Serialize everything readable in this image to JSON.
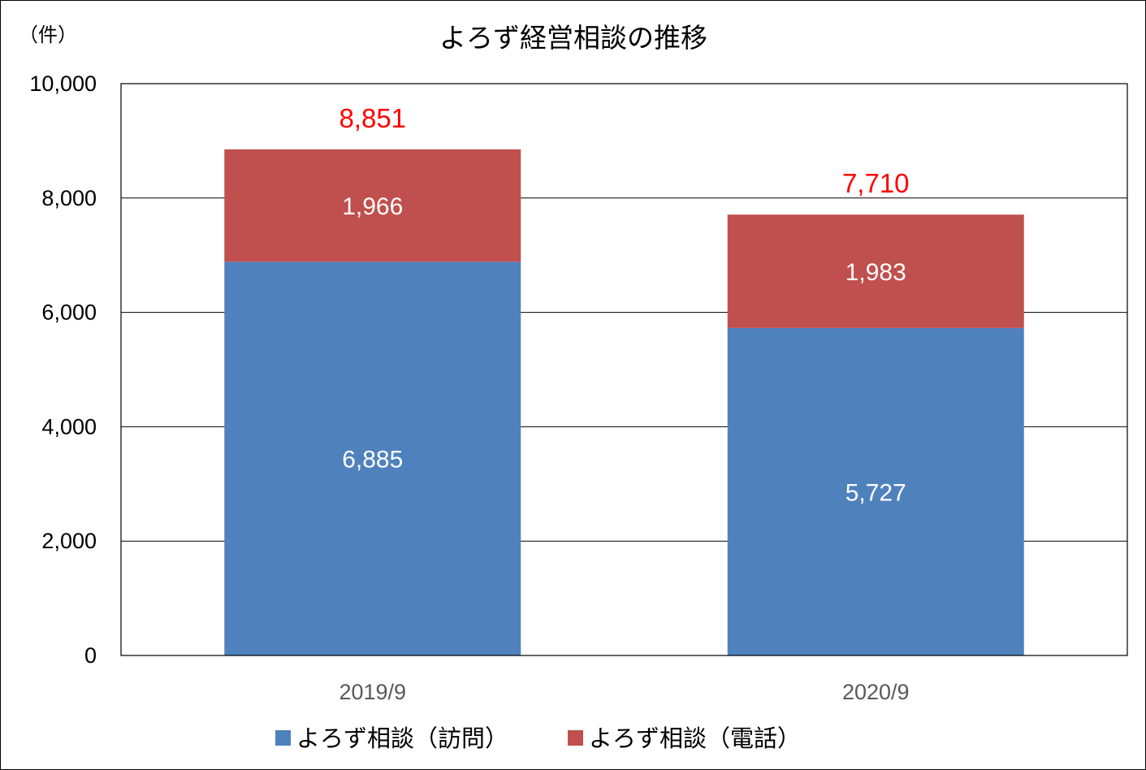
{
  "chart_data": {
    "type": "bar",
    "stacked": true,
    "title": "よろず経営相談の推移",
    "unit_label": "（件）",
    "categories": [
      "2019/9",
      "2020/9"
    ],
    "series": [
      {
        "name": "よろず相談（訪問）",
        "color": "#4f81bd",
        "values": [
          6885,
          5727
        ],
        "value_labels": [
          "6,885",
          "5,727"
        ]
      },
      {
        "name": "よろず相談（電話）",
        "color": "#c0504d",
        "values": [
          1966,
          1983
        ],
        "value_labels": [
          "1,966",
          "1,983"
        ]
      }
    ],
    "totals": [
      8851,
      7710
    ],
    "total_labels": [
      "8,851",
      "7,710"
    ],
    "total_label_color": "#ff0000",
    "ylim": [
      0,
      10000
    ],
    "yticks": [
      0,
      2000,
      4000,
      6000,
      8000,
      10000
    ],
    "ytick_labels": [
      "0",
      "2,000",
      "4,000",
      "6,000",
      "8,000",
      "10,000"
    ],
    "grid": true,
    "legend": "bottom"
  }
}
